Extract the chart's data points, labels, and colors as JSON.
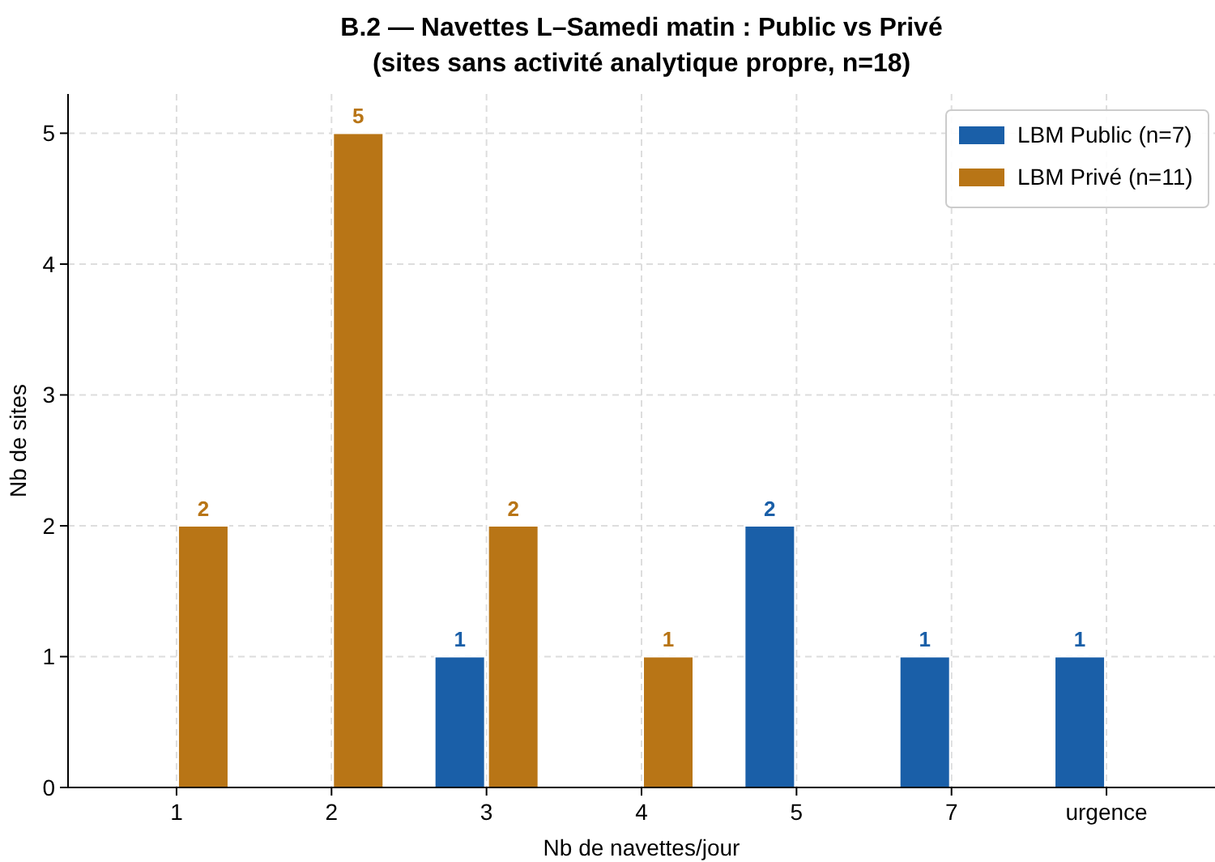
{
  "chart_data": {
    "type": "bar",
    "title": "B.2 — Navettes L–Samedi matin : Public vs Privé",
    "subtitle": "(sites sans activité analytique propre, n=18)",
    "xlabel": "Nb de navettes/jour",
    "ylabel": "Nb de sites",
    "categories": [
      "1",
      "2",
      "3",
      "4",
      "5",
      "7",
      "urgence"
    ],
    "series": [
      {
        "name": "LBM Public (n=7)",
        "color": "#1a5fa8",
        "values": [
          null,
          null,
          1,
          null,
          2,
          1,
          1
        ]
      },
      {
        "name": "LBM Privé (n=11)",
        "color": "#b87516",
        "values": [
          2,
          5,
          2,
          1,
          null,
          null,
          null
        ]
      }
    ],
    "ylim": [
      0,
      5.3
    ],
    "yticks": [
      0,
      1,
      2,
      3,
      4,
      5
    ],
    "grid": true,
    "legend": "top right",
    "data_labels": true
  }
}
